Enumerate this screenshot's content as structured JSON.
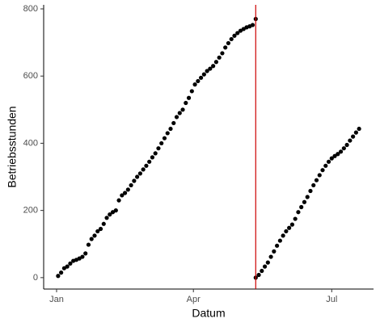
{
  "chart_data": {
    "type": "scatter",
    "x_label": "Datum",
    "y_label": "Betriebsstunden",
    "x": [
      1,
      3,
      5,
      7,
      9,
      11,
      13,
      15,
      17,
      19,
      21,
      23,
      25,
      27,
      29,
      31,
      33,
      35,
      37,
      39,
      41,
      43,
      45,
      47,
      49,
      51,
      53,
      55,
      57,
      59,
      61,
      63,
      65,
      67,
      69,
      71,
      73,
      75,
      77,
      79,
      81,
      83,
      85,
      87,
      89,
      91,
      93,
      95,
      97,
      99,
      101,
      103,
      105,
      107,
      109,
      111,
      113,
      115,
      117,
      119,
      121,
      123,
      125,
      127,
      129,
      131,
      131,
      133,
      135,
      137,
      139,
      141,
      143,
      145,
      147,
      149,
      151,
      153,
      155,
      157,
      159,
      161,
      163,
      165,
      167,
      169,
      171,
      173,
      175,
      177,
      179,
      181,
      183,
      185,
      187,
      189,
      191,
      193,
      195,
      197,
      199
    ],
    "values": [
      5,
      15,
      28,
      33,
      42,
      50,
      53,
      57,
      62,
      72,
      98,
      115,
      125,
      138,
      145,
      160,
      178,
      188,
      195,
      200,
      230,
      245,
      252,
      262,
      275,
      288,
      300,
      310,
      322,
      333,
      345,
      358,
      370,
      385,
      400,
      415,
      430,
      443,
      460,
      478,
      490,
      500,
      520,
      535,
      555,
      575,
      585,
      595,
      605,
      615,
      622,
      630,
      642,
      655,
      668,
      685,
      698,
      710,
      720,
      728,
      735,
      740,
      745,
      748,
      752,
      770,
      0,
      8,
      20,
      33,
      45,
      62,
      78,
      95,
      110,
      125,
      138,
      148,
      158,
      175,
      195,
      210,
      225,
      240,
      258,
      275,
      290,
      305,
      320,
      333,
      345,
      355,
      362,
      368,
      375,
      385,
      395,
      408,
      420,
      432,
      443
    ],
    "color": "#000000",
    "vline": {
      "x": 131,
      "color": "#cc0000"
    },
    "xlim": [
      -8.5,
      208.5
    ],
    "xticks": [
      {
        "value": 0,
        "label": "Jan"
      },
      {
        "value": 90,
        "label": "Apr"
      },
      {
        "value": 181,
        "label": "Jul"
      }
    ],
    "ylim": [
      -34,
      812
    ],
    "yticks": [
      0,
      200,
      400,
      600,
      800
    ],
    "grid": false
  }
}
